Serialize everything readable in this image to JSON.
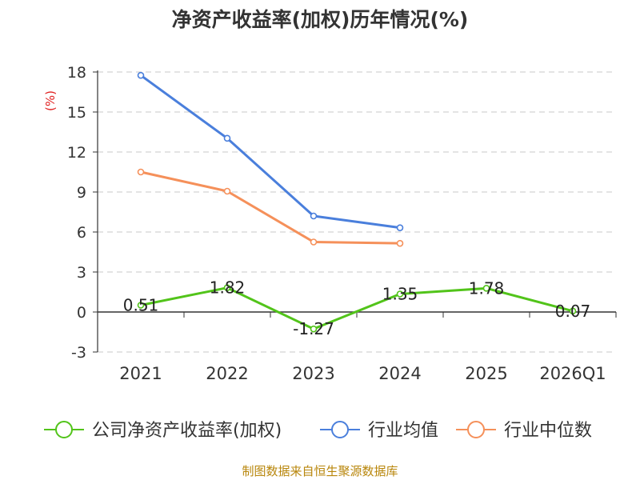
{
  "chart_data": {
    "type": "line",
    "title": "净资产收益率(加权)历年情况(%)",
    "ylabel": "(%)",
    "categories": [
      "2021",
      "2022",
      "2023",
      "2024",
      "2025",
      "2026Q1"
    ],
    "ylim": [
      -3,
      18
    ],
    "yticks": [
      -3,
      0,
      3,
      6,
      9,
      12,
      15,
      18
    ],
    "grid": true,
    "legend_position": "bottom",
    "series": [
      {
        "name": "公司净资产收益率(加权)",
        "color": "#52c41a",
        "values": [
          0.51,
          1.82,
          -1.27,
          1.35,
          1.78,
          0.07
        ],
        "labels": [
          "0.51",
          "1.82",
          "-1.27",
          "1.35",
          "1.78",
          "0.07"
        ]
      },
      {
        "name": "行业均值",
        "color": "#4a7fdc",
        "values": [
          17.75,
          13.03,
          7.2,
          6.32,
          null,
          null
        ]
      },
      {
        "name": "行业中位数",
        "color": "#f5905a",
        "values": [
          10.5,
          9.06,
          5.25,
          5.15,
          null,
          null
        ]
      }
    ],
    "source": "制图数据来自恒生聚源数据库",
    "ylabel_color": "#e02020",
    "source_color": "#b8860b"
  }
}
